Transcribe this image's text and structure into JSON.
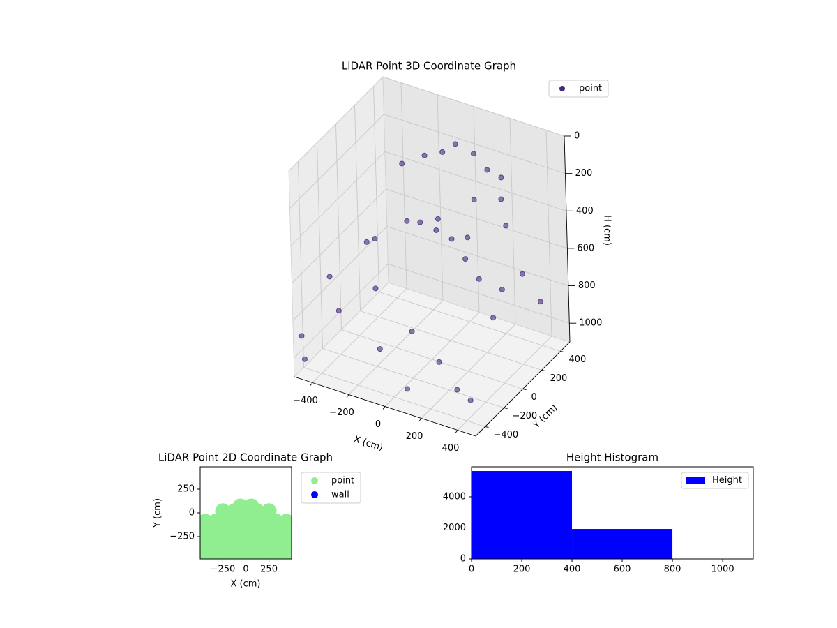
{
  "chart_data": [
    {
      "type": "scatter3d",
      "title": "LiDAR Point 3D Coordinate Graph",
      "xlabel": "X (cm)",
      "ylabel": "Y (cm)",
      "zlabel": "H (cm)",
      "xlim": [
        -500,
        500
      ],
      "ylim": [
        -500,
        500
      ],
      "zlim": [
        0,
        1100
      ],
      "xticks": [
        {
          "value": -400,
          "label": "−400"
        },
        {
          "value": -200,
          "label": "−200"
        },
        0,
        200,
        400
      ],
      "yticks": [
        {
          "value": -400,
          "label": "−400"
        },
        {
          "value": -200,
          "label": "−200"
        },
        0,
        200,
        400
      ],
      "zticks": [
        0,
        200,
        400,
        600,
        800,
        1000
      ],
      "grid": true,
      "legend": "upper right",
      "series": [
        {
          "name": "point",
          "color": "#46287c",
          "x": [
            0,
            100,
            200,
            -100,
            -200,
            -300,
            300,
            350,
            250,
            150,
            0,
            -100,
            100,
            200,
            -200,
            -300,
            300,
            400,
            -450,
            -400,
            -350,
            -480,
            -450,
            -250,
            0,
            200,
            350,
            450,
            400,
            100,
            -100,
            300,
            450,
            0,
            -200
          ],
          "y": [
            300,
            300,
            250,
            350,
            350,
            300,
            200,
            150,
            300,
            200,
            100,
            100,
            50,
            0,
            150,
            0,
            -50,
            0,
            -200,
            100,
            -300,
            -450,
            -480,
            -100,
            -200,
            -300,
            -400,
            -450,
            -100,
            -450,
            -350,
            400,
            300,
            400,
            450
          ],
          "z": [
            100,
            120,
            150,
            200,
            250,
            300,
            250,
            350,
            200,
            300,
            400,
            450,
            450,
            500,
            500,
            550,
            550,
            600,
            700,
            650,
            800,
            900,
            1000,
            750,
            850,
            900,
            950,
            950,
            700,
            1000,
            900,
            750,
            800,
            650,
            700
          ]
        }
      ]
    },
    {
      "type": "scatter",
      "title": "LiDAR Point 2D Coordinate Graph",
      "xlabel": "X (cm)",
      "ylabel": "Y (cm)",
      "xlim": [
        -495,
        495
      ],
      "ylim": [
        -485,
        485
      ],
      "xticks": [
        {
          "value": -250,
          "label": "−250"
        },
        0,
        250
      ],
      "yticks": [
        {
          "value": -250,
          "label": "−250"
        },
        0,
        250
      ],
      "legend": "outside right",
      "series": [
        {
          "name": "point",
          "color": "#90ee90",
          "x": [
            -440,
            -330,
            -220,
            -110,
            0,
            110,
            220,
            330,
            440,
            -440,
            -330,
            -220,
            -110,
            0,
            110,
            220,
            330,
            440,
            -440,
            -330,
            -220,
            -110,
            0,
            110,
            220,
            330,
            440,
            -440,
            -330,
            -220,
            -110,
            0,
            110,
            220,
            330,
            440,
            -250,
            -120,
            0,
            120,
            250,
            -60,
            60
          ],
          "y": [
            -440,
            -440,
            -440,
            -440,
            -440,
            -440,
            -440,
            -440,
            -440,
            -320,
            -320,
            -320,
            -320,
            -320,
            -320,
            -320,
            -320,
            -320,
            -200,
            -200,
            -200,
            -200,
            -200,
            -200,
            -200,
            -200,
            -200,
            -90,
            -90,
            -90,
            -90,
            -90,
            -90,
            -90,
            -90,
            -90,
            20,
            20,
            20,
            20,
            20,
            70,
            70
          ]
        },
        {
          "name": "wall",
          "color": "#0000ff",
          "x": [],
          "y": []
        }
      ]
    },
    {
      "type": "histogram",
      "title": "Height Histogram",
      "name": "Height",
      "color": "#0000ff",
      "bins": [
        0,
        400,
        800,
        1200
      ],
      "counts": [
        5660,
        1930,
        15
      ],
      "xlim": [
        0,
        1122
      ],
      "ylim": [
        0,
        5930
      ],
      "xticks": [
        0,
        200,
        400,
        600,
        800,
        1000
      ],
      "yticks": [
        0,
        2000,
        4000
      ],
      "legend": "upper right"
    }
  ]
}
